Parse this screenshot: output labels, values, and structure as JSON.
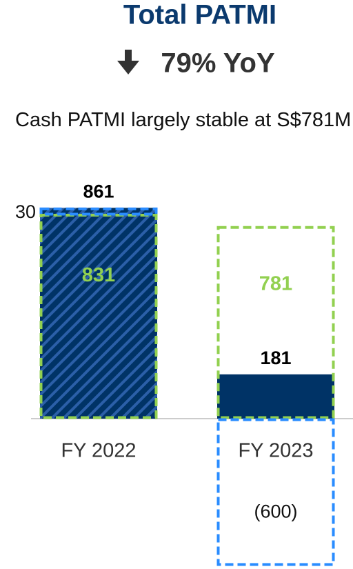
{
  "chart_data": {
    "type": "bar",
    "title": "Total PATMI",
    "subtitle": "79% YoY",
    "annotation": "Cash PATMI largely stable at S$781M",
    "categories": [
      "FY 2022",
      "FY 2023"
    ],
    "series": [
      {
        "color": "#003366",
        "hatch": [
          true,
          false
        ],
        "values": [
          861,
          181
        ]
      },
      {
        "color": "#92d050",
        "values": [
          831,
          781
        ]
      },
      {
        "color": "#2a8cff",
        "values": [
          30,
          -600
        ],
        "value_labels": [
          "30",
          "(600)"
        ]
      }
    ]
  }
}
